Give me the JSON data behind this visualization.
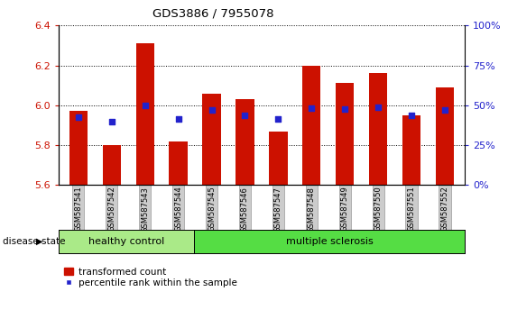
{
  "title": "GDS3886 / 7955078",
  "samples": [
    "GSM587541",
    "GSM587542",
    "GSM587543",
    "GSM587544",
    "GSM587545",
    "GSM587546",
    "GSM587547",
    "GSM587548",
    "GSM587549",
    "GSM587550",
    "GSM587551",
    "GSM587552"
  ],
  "red_bar_tops": [
    5.97,
    5.8,
    6.31,
    5.82,
    6.06,
    6.03,
    5.87,
    6.2,
    6.11,
    6.16,
    5.95,
    6.09
  ],
  "blue_sq_vals": [
    5.94,
    5.92,
    6.0,
    5.93,
    5.975,
    5.95,
    5.93,
    5.985,
    5.98,
    5.99,
    5.95,
    5.975
  ],
  "ymin": 5.6,
  "ymax": 6.4,
  "bar_bottom": 5.6,
  "bar_color": "#cc1100",
  "blue_color": "#2222cc",
  "grid_color": "#000000",
  "healthy_label": "healthy control",
  "ms_label": "multiple sclerosis",
  "healthy_color": "#aaea88",
  "ms_color": "#55dd44",
  "disease_label": "disease state",
  "legend1": "transformed count",
  "legend2": "percentile rank within the sample",
  "tick_yticks": [
    5.6,
    5.8,
    6.0,
    6.2,
    6.4
  ],
  "right_yticks": [
    0,
    25,
    50,
    75,
    100
  ],
  "bar_width": 0.55,
  "bg_color": "#ffffff",
  "plot_bg": "#ffffff",
  "title_color": "#000000",
  "left_tick_color": "#cc1100",
  "right_tick_color": "#2222cc"
}
